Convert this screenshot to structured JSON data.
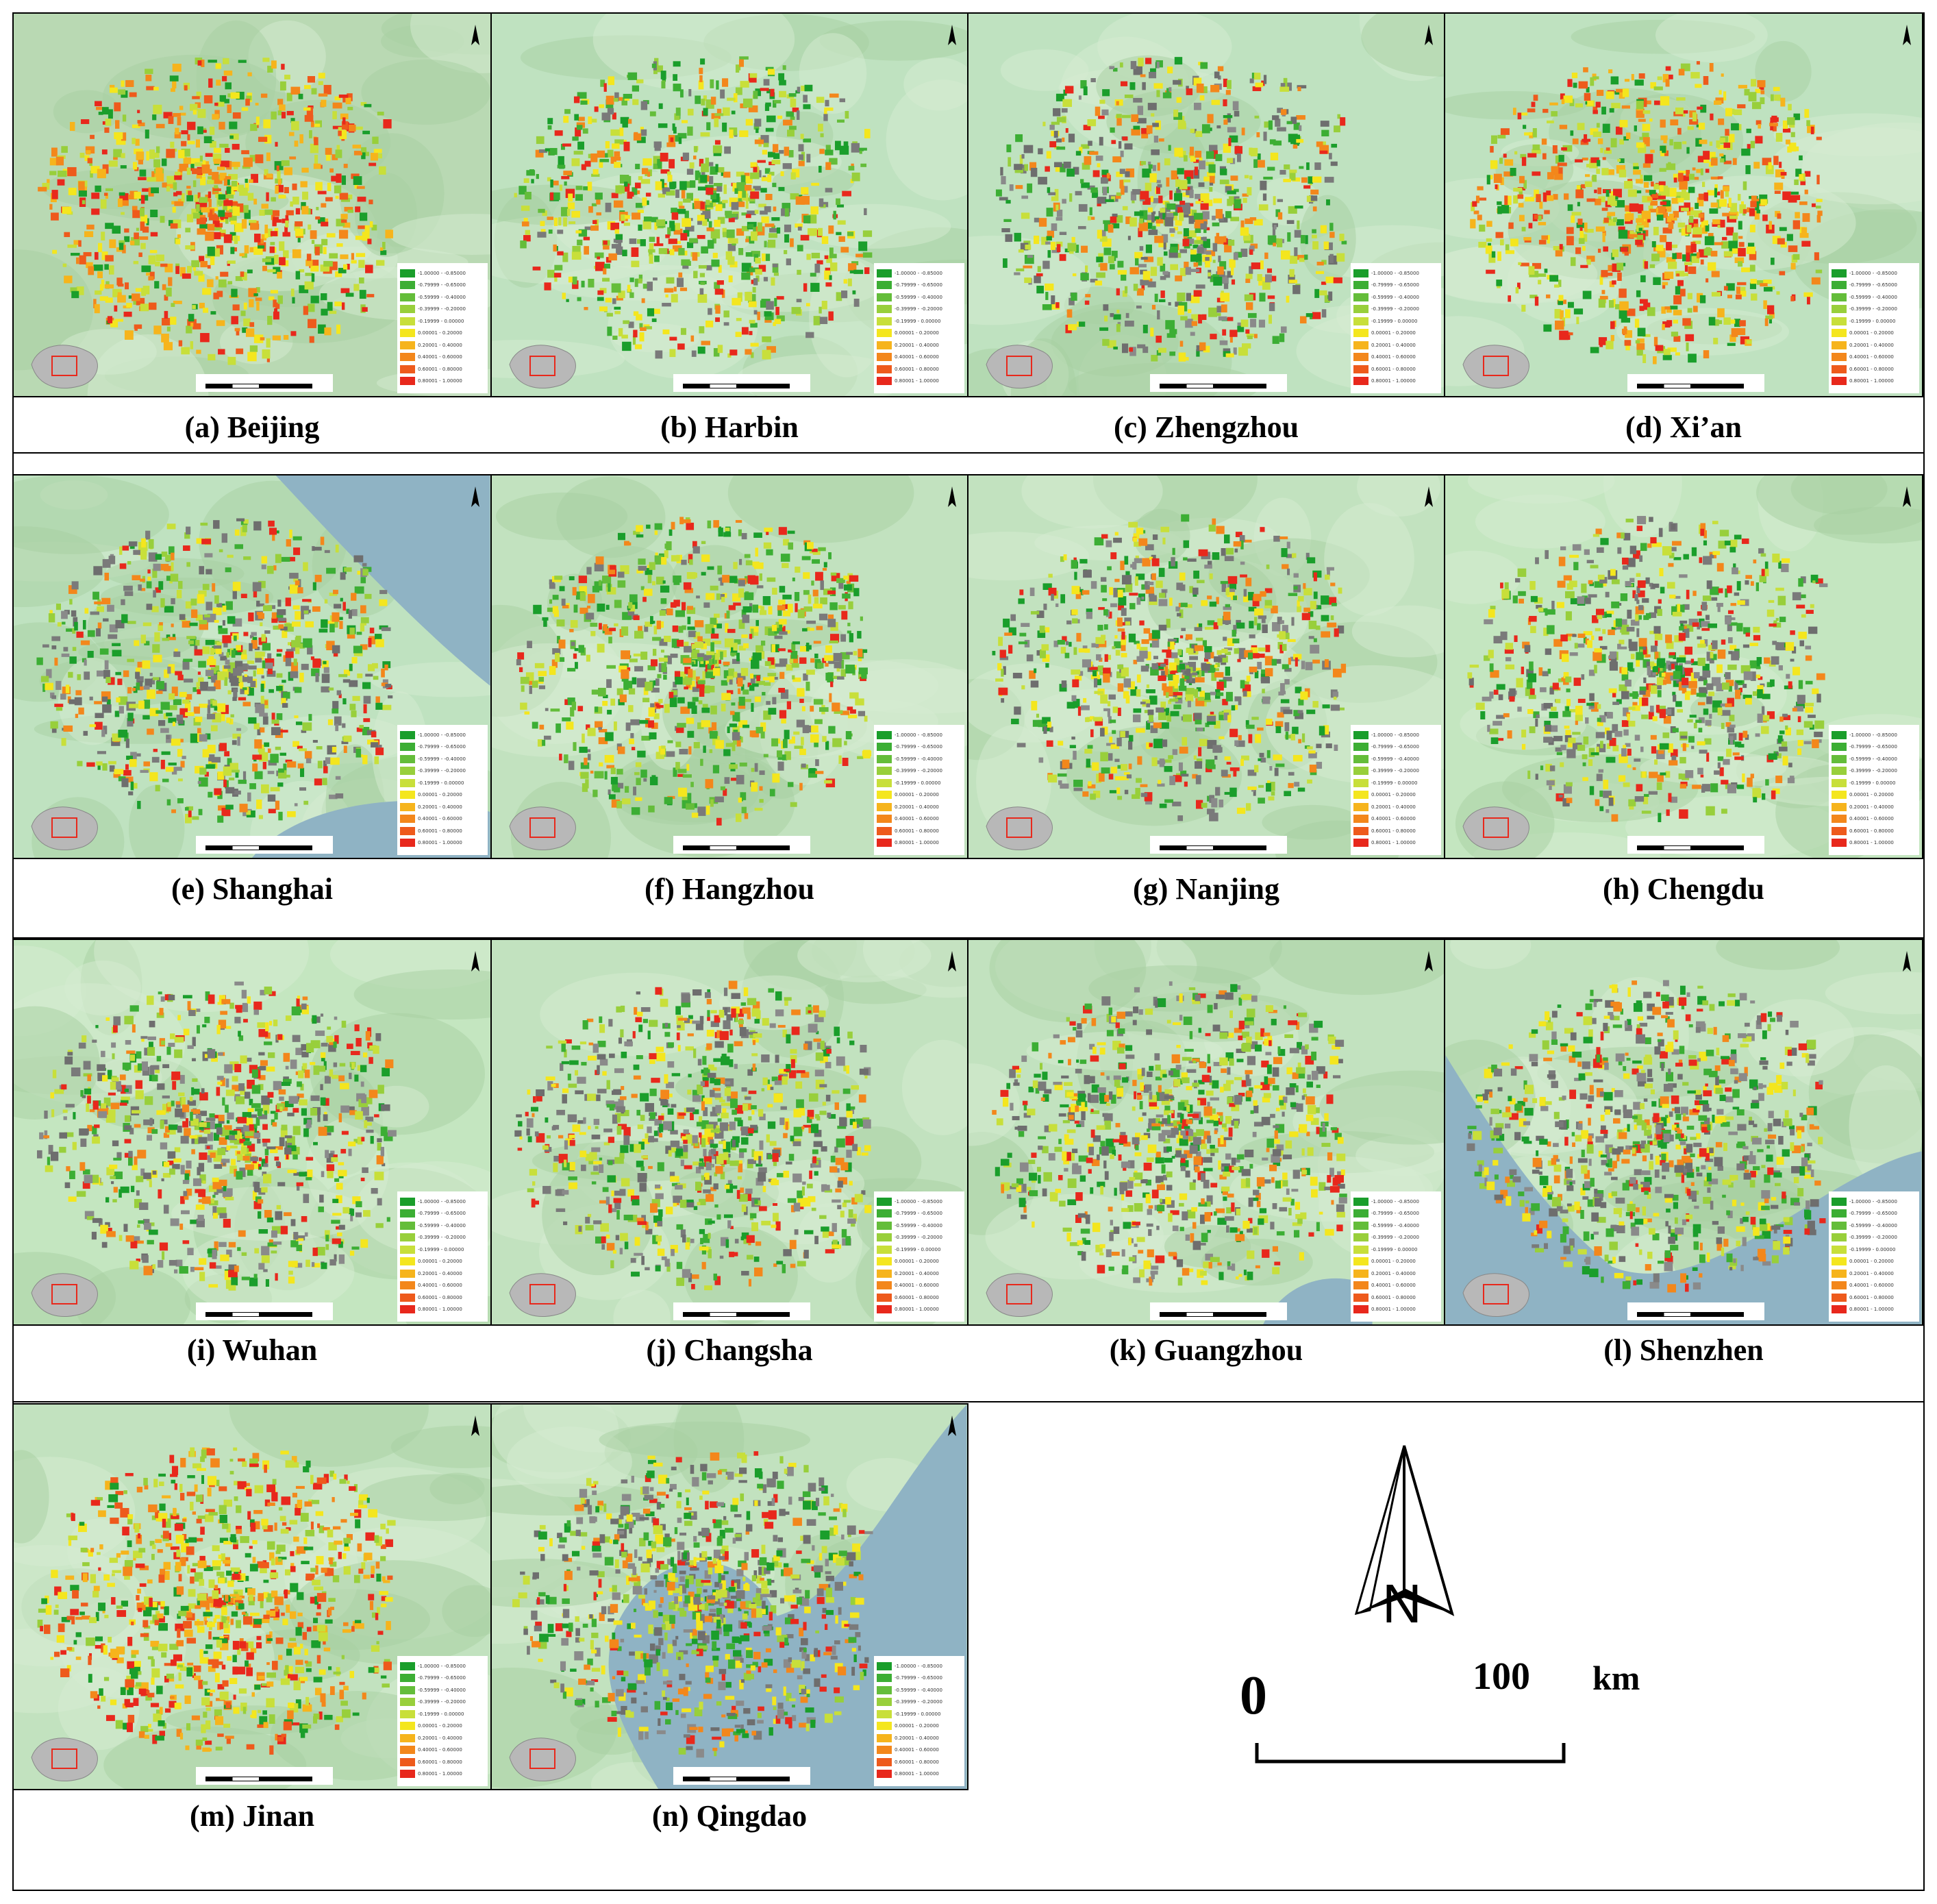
{
  "panels": [
    {
      "id": "a",
      "caption": "(a) Beijing",
      "bg": "#b9d9b3",
      "palette": "warm"
    },
    {
      "id": "b",
      "caption": "(b) Harbin",
      "bg": "#bfe2c0",
      "palette": "green"
    },
    {
      "id": "c",
      "caption": "(c) Zhengzhou",
      "bg": "#bfe2c0",
      "palette": "mixed"
    },
    {
      "id": "d",
      "caption": "(d) Xi’an",
      "bg": "#bfe2c0",
      "palette": "warm"
    },
    {
      "id": "e",
      "caption": "(e) Shanghai",
      "bg": "#bfe2c0",
      "palette": "mixed",
      "water": true
    },
    {
      "id": "f",
      "caption": "(f) Hangzhou",
      "bg": "#c2e2bf",
      "palette": "green"
    },
    {
      "id": "g",
      "caption": "(g) Nanjing",
      "bg": "#c2e2bf",
      "palette": "mixed"
    },
    {
      "id": "h",
      "caption": "(h) Chengdu",
      "bg": "#c4e6c0",
      "palette": "mixed"
    },
    {
      "id": "i",
      "caption": "(i) Wuhan",
      "bg": "#c4e6c0",
      "palette": "mixed"
    },
    {
      "id": "j",
      "caption": "(j) Changsha",
      "bg": "#c2e2bf",
      "palette": "mixed"
    },
    {
      "id": "k",
      "caption": "(k) Guangzhou",
      "bg": "#c2e2bf",
      "palette": "mixed",
      "water": true
    },
    {
      "id": "l",
      "caption": "(l) Shenzhen",
      "bg": "#c2e2bf",
      "palette": "mixed",
      "water": true
    },
    {
      "id": "m",
      "caption": "(m) Jinan",
      "bg": "#c2e2bf",
      "palette": "warm"
    },
    {
      "id": "n",
      "caption": "(n) Qingdao",
      "bg": "#c2e2bf",
      "palette": "mixed",
      "water": true
    }
  ],
  "legend": {
    "items": [
      {
        "label": "-1.00000 - -0.85000",
        "color": "#1a9e2b"
      },
      {
        "label": "-0.79999 - -0.65000",
        "color": "#3cae34"
      },
      {
        "label": "-0.59999 - -0.40000",
        "color": "#64bd3a"
      },
      {
        "label": "-0.39999 - -0.20000",
        "color": "#98cf3b"
      },
      {
        "label": "-0.19999 - 0.00000",
        "color": "#c8df3a"
      },
      {
        "label": "0.00001 - 0.20000",
        "color": "#f4e61e"
      },
      {
        "label": "0.20001 - 0.40000",
        "color": "#f6b41c"
      },
      {
        "label": "0.40001 - 0.60000",
        "color": "#f3871b"
      },
      {
        "label": "0.60001 - 0.80000",
        "color": "#ee5a1c"
      },
      {
        "label": "0.80001 - 1.00000",
        "color": "#e8281c"
      }
    ]
  },
  "scale": {
    "zero": "0",
    "hundred": "100",
    "unit": "km"
  },
  "north": {
    "letter": "N"
  }
}
